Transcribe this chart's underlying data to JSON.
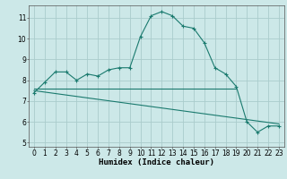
{
  "title": "",
  "xlabel": "Humidex (Indice chaleur)",
  "bg_color": "#cce8e8",
  "grid_color": "#aacccc",
  "line_color": "#1a7a6e",
  "line1_x": [
    0,
    1,
    2,
    3,
    4,
    5,
    6,
    7,
    8,
    9,
    10,
    11,
    12,
    13,
    14,
    15,
    16,
    17,
    18,
    19,
    20,
    21,
    22,
    23
  ],
  "line1_y": [
    7.4,
    7.9,
    8.4,
    8.4,
    8.0,
    8.3,
    8.2,
    8.5,
    8.6,
    8.6,
    10.1,
    11.1,
    11.3,
    11.1,
    10.6,
    10.5,
    9.8,
    8.6,
    8.3,
    7.7,
    6.0,
    5.5,
    5.8,
    5.8
  ],
  "line2_x": [
    0,
    19
  ],
  "line2_y": [
    7.6,
    7.6
  ],
  "line3_x": [
    0,
    23
  ],
  "line3_y": [
    7.5,
    5.9
  ],
  "xlim": [
    -0.5,
    23.5
  ],
  "ylim": [
    4.8,
    11.6
  ],
  "yticks": [
    5,
    6,
    7,
    8,
    9,
    10,
    11
  ],
  "xticks": [
    0,
    1,
    2,
    3,
    4,
    5,
    6,
    7,
    8,
    9,
    10,
    11,
    12,
    13,
    14,
    15,
    16,
    17,
    18,
    19,
    20,
    21,
    22,
    23
  ],
  "tick_fontsize": 5.5,
  "xlabel_fontsize": 6.5
}
